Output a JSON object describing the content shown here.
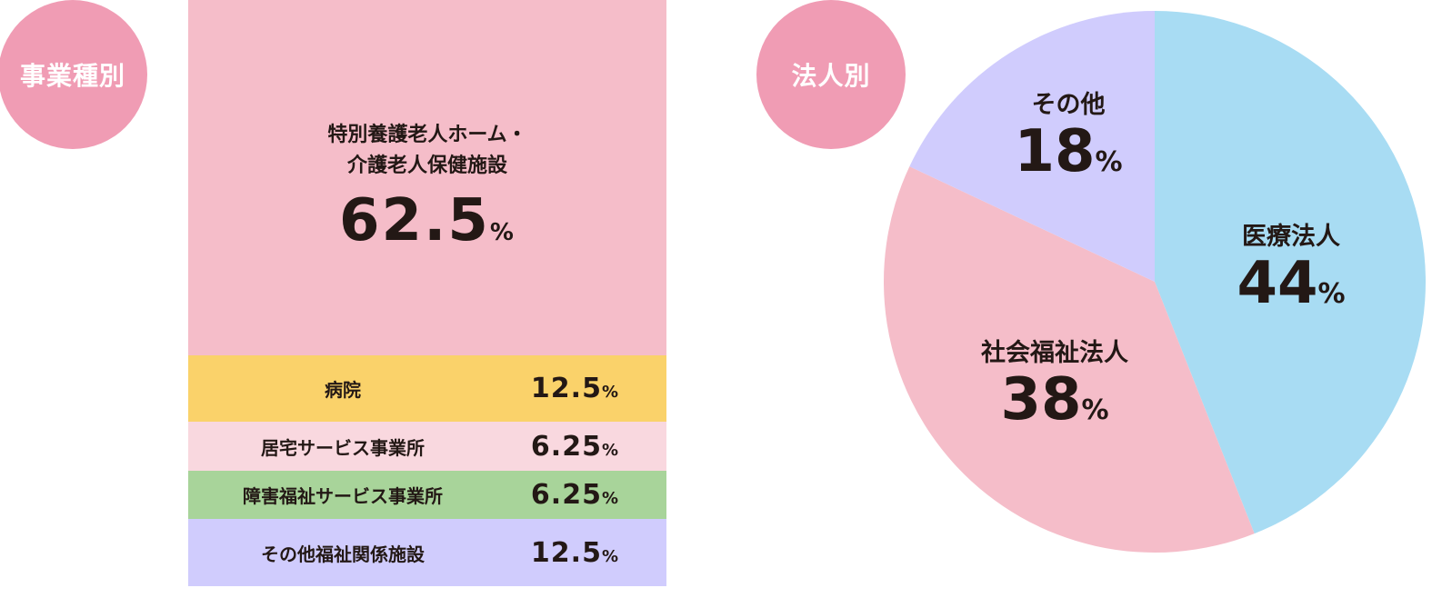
{
  "colors": {
    "badge": "#f09cb4",
    "text": "#231815"
  },
  "chart_data": [
    {
      "type": "bar",
      "stacked": true,
      "badge": "事業種別",
      "unit": "%",
      "categories": [
        "特別養護老人ホーム・\n介護老人保健施設",
        "病院",
        "居宅サービス事業所",
        "障害福祉サービス事業所",
        "その他福祉関係施設"
      ],
      "label_lines": [
        [
          "特別養護老人ホーム・",
          "介護老人保健施設"
        ]
      ],
      "values": [
        62.5,
        12.5,
        6.25,
        6.25,
        12.5
      ],
      "value_labels": [
        "62.5",
        "12.5",
        "6.25",
        "6.25",
        "12.5"
      ],
      "colors": [
        "#f5bdc9",
        "#fad26a",
        "#f9d8df",
        "#a8d49a",
        "#d0ccfd"
      ]
    },
    {
      "type": "pie",
      "badge": "法人別",
      "unit": "%",
      "start": "top",
      "direction": "clockwise",
      "categories": [
        "医療法人",
        "社会福祉法人",
        "その他"
      ],
      "values": [
        44,
        38,
        18
      ],
      "colors": [
        "#a8dcf3",
        "#f5bdc9",
        "#d0ccfd"
      ]
    }
  ]
}
